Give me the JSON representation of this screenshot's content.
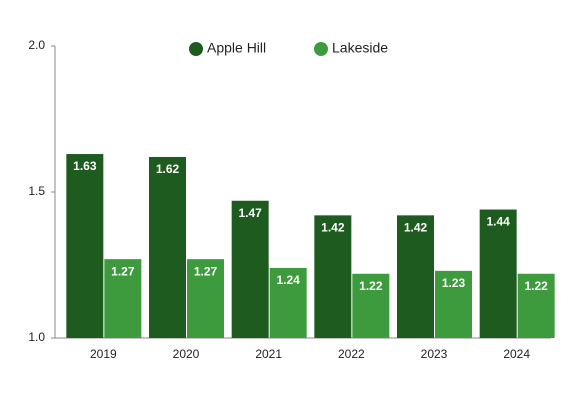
{
  "chart_data": {
    "type": "bar",
    "categories": [
      "2019",
      "2020",
      "2021",
      "2022",
      "2023",
      "2024"
    ],
    "series": [
      {
        "name": "Apple Hill",
        "color": "#1e5b1e",
        "values": [
          1.63,
          1.62,
          1.47,
          1.42,
          1.42,
          1.44
        ]
      },
      {
        "name": "Lakeside",
        "color": "#3d9b3d",
        "values": [
          1.27,
          1.27,
          1.24,
          1.22,
          1.23,
          1.22
        ]
      }
    ],
    "ylim": [
      1.0,
      2.0
    ],
    "yticks": [
      {
        "value": 1.0,
        "label": "1.0"
      },
      {
        "value": 1.5,
        "label": "1.5"
      },
      {
        "value": 2.0,
        "label": "2.0"
      }
    ],
    "legend": "top"
  }
}
